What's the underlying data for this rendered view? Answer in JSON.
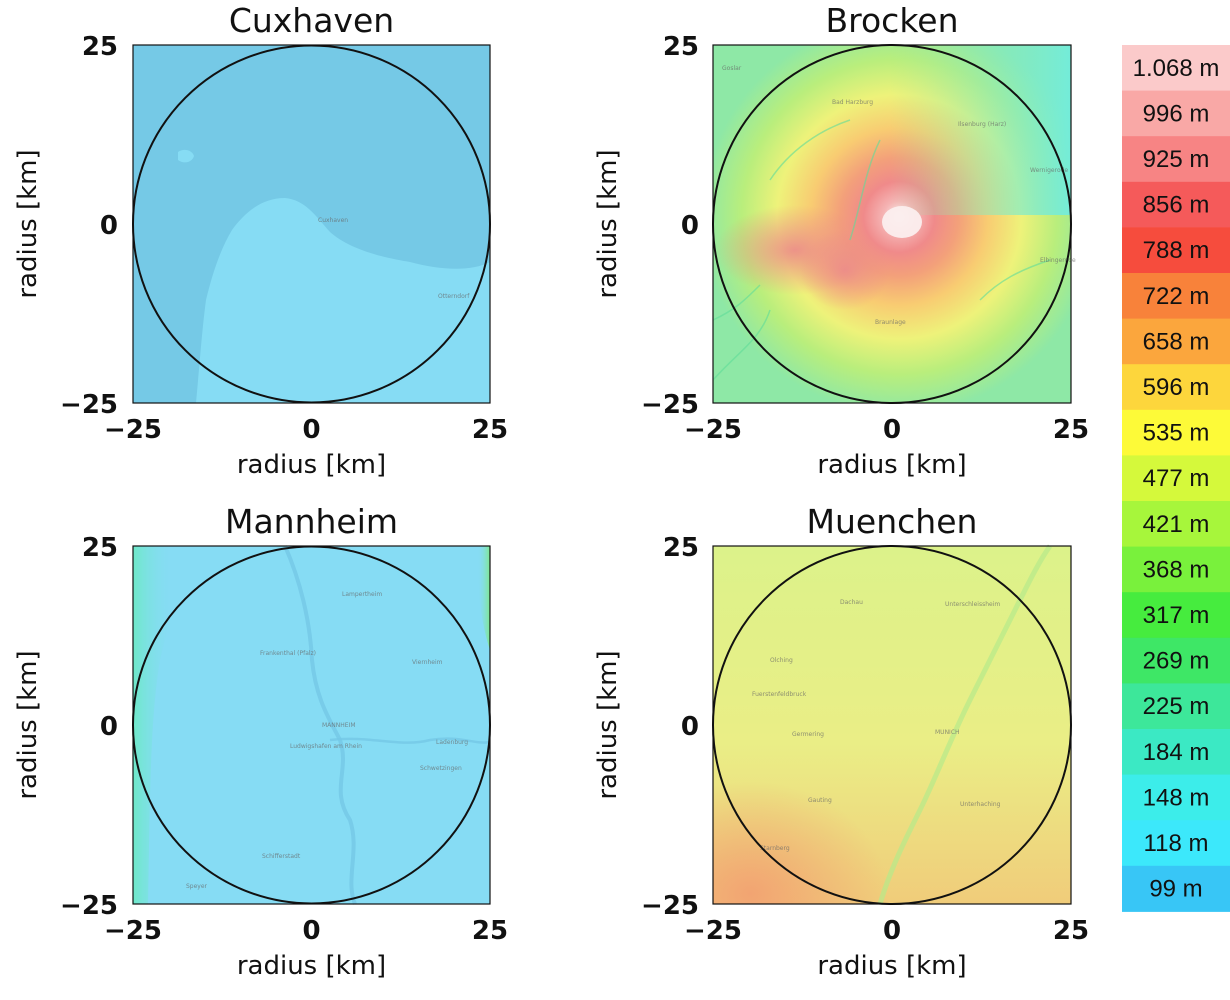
{
  "chart_data": {
    "type": "heatmap",
    "description_units": "radius [km]",
    "panels": [
      {
        "title": "Cuxhaven",
        "xlabel": "radius [km]",
        "ylabel": "radius [km]",
        "xlim": [
          -25,
          25
        ],
        "ylim": [
          -25,
          25
        ],
        "xticks": [
          "−25",
          "0",
          "25"
        ],
        "yticks": [
          "−25",
          "0",
          "25"
        ],
        "circle_radius_km": 25,
        "dominant_elevation": "99 m",
        "map_labels": [
          "Cuxhaven",
          "Otterndorf"
        ]
      },
      {
        "title": "Brocken",
        "xlabel": "radius [km]",
        "ylabel": "radius [km]",
        "xlim": [
          -25,
          25
        ],
        "ylim": [
          -25,
          25
        ],
        "xticks": [
          "−25",
          "0",
          "25"
        ],
        "yticks": [
          "−25",
          "0",
          "25"
        ],
        "circle_radius_km": 25,
        "dominant_elevation": "1.068 m",
        "map_labels": [
          "Goslar",
          "Bad Harzburg",
          "Ilsenburg (Harz)",
          "Wernigerode",
          "Braunlage",
          "Elbingerode"
        ]
      },
      {
        "title": "Mannheim",
        "xlabel": "radius [km]",
        "ylabel": "radius [km]",
        "xlim": [
          -25,
          25
        ],
        "ylim": [
          -25,
          25
        ],
        "xticks": [
          "−25",
          "0",
          "25"
        ],
        "yticks": [
          "−25",
          "0",
          "25"
        ],
        "circle_radius_km": 25,
        "dominant_elevation": "99 m",
        "map_labels": [
          "Lampertheim",
          "Frankenthal (Pfalz)",
          "Viernheim",
          "MANNHEIM",
          "Ludwigshafen am Rhein",
          "Ladenburg",
          "Schwetzingen",
          "Schifferstadt",
          "Speyer"
        ]
      },
      {
        "title": "Muenchen",
        "xlabel": "radius [km]",
        "ylabel": "radius [km]",
        "xlim": [
          -25,
          25
        ],
        "ylim": [
          -25,
          25
        ],
        "xticks": [
          "−25",
          "0",
          "25"
        ],
        "yticks": [
          "−25",
          "0",
          "25"
        ],
        "circle_radius_km": 25,
        "dominant_elevation": "535 m",
        "map_labels": [
          "Dachau",
          "Unterschleissheim",
          "Olching",
          "Fuerstenfeldbruck",
          "Germering",
          "MUNICH",
          "Gauting",
          "Unterhaching",
          "Starnberg"
        ]
      }
    ],
    "legend": {
      "title": "",
      "placement": "right",
      "entries": [
        {
          "label": "1.068 m",
          "color": "#fbcaca"
        },
        {
          "label": "996 m",
          "color": "#f9a8a6"
        },
        {
          "label": "925 m",
          "color": "#f78484"
        },
        {
          "label": "856 m",
          "color": "#f55a5a"
        },
        {
          "label": "788 m",
          "color": "#f64c3d"
        },
        {
          "label": "722 m",
          "color": "#f8823a"
        },
        {
          "label": "658 m",
          "color": "#fba63d"
        },
        {
          "label": "596 m",
          "color": "#fdd63c"
        },
        {
          "label": "535 m",
          "color": "#fdfa38"
        },
        {
          "label": "477 m",
          "color": "#d5f93b"
        },
        {
          "label": "421 m",
          "color": "#a7f63b"
        },
        {
          "label": "368 m",
          "color": "#79f13c"
        },
        {
          "label": "317 m",
          "color": "#46ec3e"
        },
        {
          "label": "269 m",
          "color": "#3ee766"
        },
        {
          "label": "225 m",
          "color": "#3de79a"
        },
        {
          "label": "184 m",
          "color": "#3be9c4"
        },
        {
          "label": "148 m",
          "color": "#3cedea"
        },
        {
          "label": "118 m",
          "color": "#3ce8fb"
        },
        {
          "label": "99 m",
          "color": "#38c6f6"
        }
      ]
    }
  }
}
